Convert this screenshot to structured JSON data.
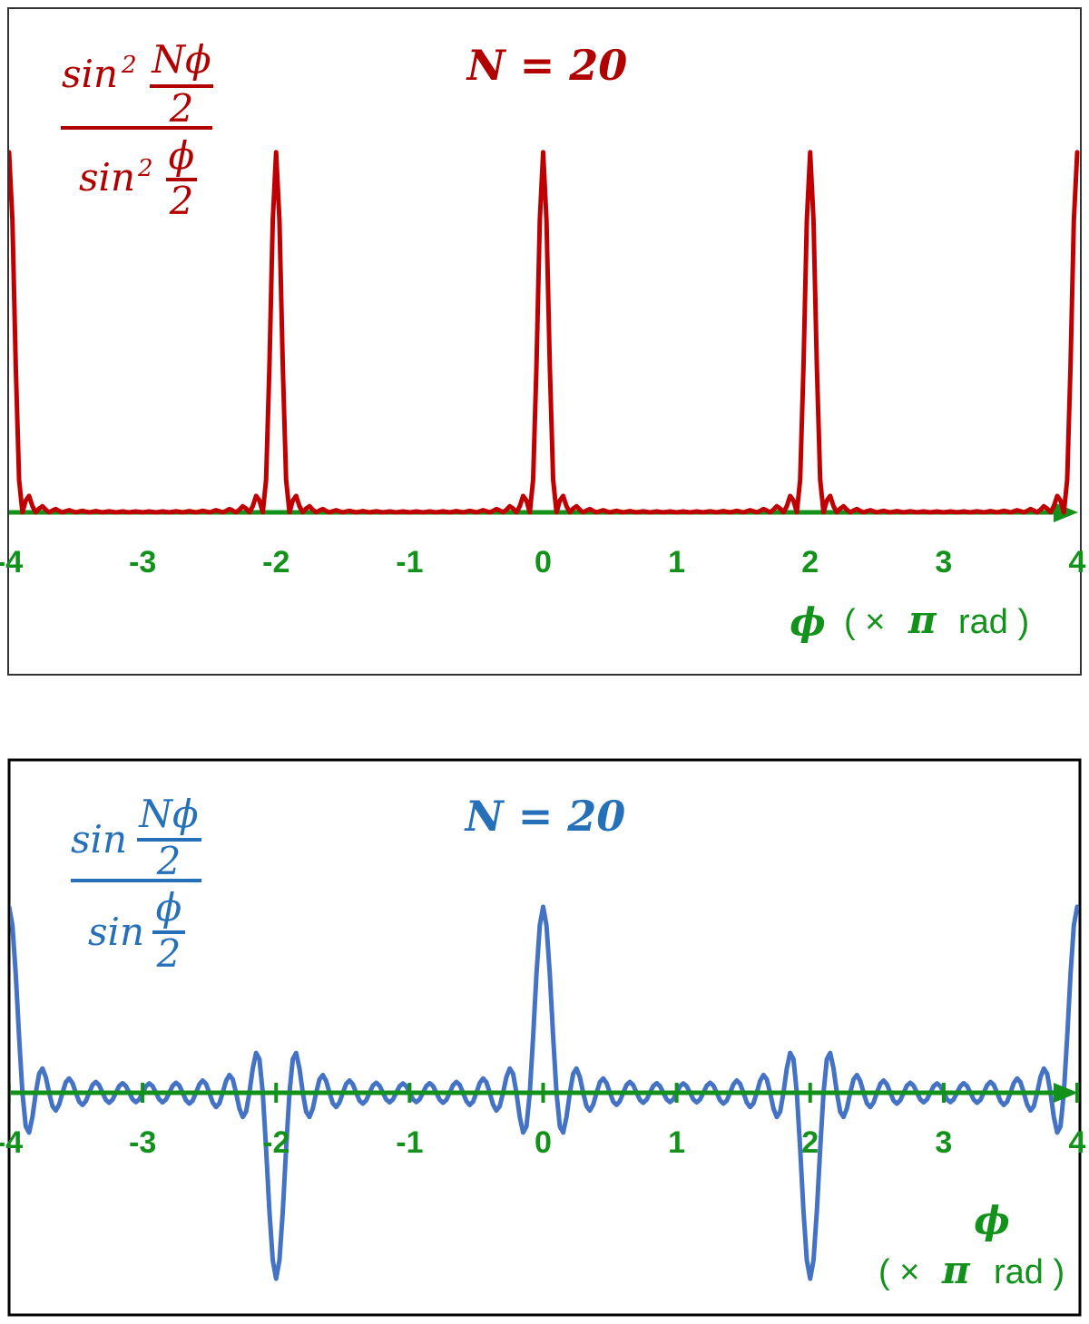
{
  "chart_data": [
    {
      "type": "line",
      "title": "N = 20",
      "formula": {
        "numerator": {
          "function": "sin",
          "power": "2",
          "frac_top": "Nϕ",
          "frac_bottom": "2"
        },
        "denominator": {
          "function": "sin",
          "power": "2",
          "frac_top": "ϕ",
          "frac_bottom": "2"
        }
      },
      "x_label": {
        "symbol": "ϕ",
        "open": "( ×",
        "pi": "π",
        "close": "rad )"
      },
      "color": "#c00000",
      "text_color": "#b00000",
      "axis_color": "#12921a",
      "tick_marks": false,
      "xlim": [
        -4,
        4
      ],
      "xticks": [
        -4,
        -3,
        -2,
        -1,
        0,
        1,
        2,
        3,
        4
      ],
      "ylim": [
        0,
        559
      ],
      "x": [
        -4,
        -3.975,
        -3.95,
        -3.925,
        -3.9,
        -3.875,
        -3.85,
        -3.825,
        -3.8,
        -3.775,
        -3.75,
        -3.725,
        -3.7,
        -3.675,
        -3.65,
        -3.625,
        -3.6,
        -3.575,
        -3.55,
        -3.525,
        -3.5,
        -3.475,
        -3.45,
        -3.425,
        -3.4,
        -3.375,
        -3.35,
        -3.325,
        -3.3,
        -3.275,
        -3.25,
        -3.225,
        -3.2,
        -3.175,
        -3.15,
        -3.125,
        -3.1,
        -3.075,
        -3.05,
        -3.025,
        -3,
        -2.975,
        -2.95,
        -2.925,
        -2.9,
        -2.875,
        -2.85,
        -2.825,
        -2.8,
        -2.775,
        -2.75,
        -2.725,
        -2.7,
        -2.675,
        -2.65,
        -2.625,
        -2.6,
        -2.575,
        -2.55,
        -2.525,
        -2.5,
        -2.475,
        -2.45,
        -2.425,
        -2.4,
        -2.375,
        -2.35,
        -2.325,
        -2.3,
        -2.275,
        -2.25,
        -2.225,
        -2.2,
        -2.175,
        -2.15,
        -2.125,
        -2.1,
        -2.075,
        -2.05,
        -2.025,
        -2,
        -1.975,
        -1.95,
        -1.925,
        -1.9,
        -1.875,
        -1.85,
        -1.825,
        -1.8,
        -1.775,
        -1.75,
        -1.725,
        -1.7,
        -1.675,
        -1.65,
        -1.625,
        -1.6,
        -1.575,
        -1.55,
        -1.525,
        -1.5,
        -1.475,
        -1.45,
        -1.425,
        -1.4,
        -1.375,
        -1.35,
        -1.325,
        -1.3,
        -1.275,
        -1.25,
        -1.225,
        -1.2,
        -1.175,
        -1.15,
        -1.125,
        -1.1,
        -1.075,
        -1.05,
        -1.025,
        -1,
        -0.975,
        -0.95,
        -0.925,
        -0.9,
        -0.875,
        -0.85,
        -0.825,
        -0.8,
        -0.775,
        -0.75,
        -0.725,
        -0.7,
        -0.675,
        -0.65,
        -0.625,
        -0.6,
        -0.575,
        -0.55,
        -0.525,
        -0.5,
        -0.475,
        -0.45,
        -0.425,
        -0.4,
        -0.375,
        -0.35,
        -0.325,
        -0.3,
        -0.275,
        -0.25,
        -0.225,
        -0.2,
        -0.175,
        -0.15,
        -0.125,
        -0.1,
        -0.075,
        -0.05,
        -0.025,
        0,
        0.025,
        0.05,
        0.075,
        0.1,
        0.125,
        0.15,
        0.175,
        0.2,
        0.225,
        0.25,
        0.275,
        0.3,
        0.325,
        0.35,
        0.375,
        0.4,
        0.425,
        0.45,
        0.475,
        0.5,
        0.525,
        0.55,
        0.575,
        0.6,
        0.625,
        0.65,
        0.675,
        0.7,
        0.725,
        0.75,
        0.775,
        0.8,
        0.825,
        0.85,
        0.875,
        0.9,
        0.925,
        0.95,
        0.975,
        1,
        1.025,
        1.05,
        1.075,
        1.1,
        1.125,
        1.15,
        1.175,
        1.2,
        1.225,
        1.25,
        1.275,
        1.3,
        1.325,
        1.35,
        1.375,
        1.4,
        1.425,
        1.45,
        1.475,
        1.5,
        1.525,
        1.55,
        1.575,
        1.6,
        1.625,
        1.65,
        1.675,
        1.7,
        1.725,
        1.75,
        1.775,
        1.8,
        1.825,
        1.85,
        1.875,
        1.9,
        1.925,
        1.95,
        1.975,
        2,
        2.025,
        2.05,
        2.075,
        2.1,
        2.125,
        2.15,
        2.175,
        2.2,
        2.225,
        2.25,
        2.275,
        2.3,
        2.325,
        2.35,
        2.375,
        2.4,
        2.425,
        2.45,
        2.475,
        2.5,
        2.525,
        2.55,
        2.575,
        2.6,
        2.625,
        2.65,
        2.675,
        2.7,
        2.725,
        2.75,
        2.775,
        2.8,
        2.825,
        2.85,
        2.875,
        2.9,
        2.925,
        2.95,
        2.975,
        3,
        3.025,
        3.05,
        3.075,
        3.1,
        3.125,
        3.15,
        3.175,
        3.2,
        3.225,
        3.25,
        3.275,
        3.3,
        3.325,
        3.35,
        3.375,
        3.4,
        3.425,
        3.45,
        3.475,
        3.5,
        3.525,
        3.55,
        3.575,
        3.6,
        3.625,
        3.65,
        3.675,
        3.7,
        3.725,
        3.75,
        3.775,
        3.8,
        3.825,
        3.85,
        3.875,
        3.9,
        3.925,
        3.95,
        3.975,
        4
      ],
      "values": [
        400,
        324.5,
        162.4,
        36.2,
        0,
        13.1,
        18.3,
        6.8,
        0,
        4.2,
        6.8,
        2.9,
        0,
        2.1,
        3.7,
        1.6,
        0,
        1.3,
        2.4,
        1.1,
        0,
        0.9,
        1.7,
        0.8,
        0,
        0.7,
        1.4,
        0.7,
        0,
        0.6,
        1.2,
        0.6,
        0,
        0.5,
        1.1,
        0.5,
        0,
        0.5,
        1,
        0.5,
        0,
        0.5,
        1,
        0.5,
        0,
        0.5,
        1.1,
        0.5,
        0,
        0.6,
        1.2,
        0.6,
        0,
        0.7,
        1.4,
        0.7,
        0,
        0.8,
        1.7,
        0.9,
        0,
        1.1,
        2.4,
        1.3,
        0,
        1.6,
        3.7,
        2.1,
        0,
        2.9,
        6.8,
        4.2,
        0,
        6.8,
        18.3,
        13.1,
        0,
        36.2,
        162.4,
        324.5,
        400,
        324.5,
        162.4,
        36.2,
        0,
        13.1,
        18.3,
        6.8,
        0,
        4.2,
        6.8,
        2.9,
        0,
        2.1,
        3.7,
        1.6,
        0,
        1.3,
        2.4,
        1.1,
        0,
        0.9,
        1.7,
        0.8,
        0,
        0.7,
        1.4,
        0.7,
        0,
        0.6,
        1.2,
        0.6,
        0,
        0.5,
        1.1,
        0.5,
        0,
        0.5,
        1,
        0.5,
        0,
        0.5,
        1,
        0.5,
        0,
        0.5,
        1.1,
        0.5,
        0,
        0.6,
        1.2,
        0.6,
        0,
        0.7,
        1.4,
        0.7,
        0,
        0.8,
        1.7,
        0.9,
        0,
        1.1,
        2.4,
        1.3,
        0,
        1.6,
        3.7,
        2.1,
        0,
        2.9,
        6.8,
        4.2,
        0,
        6.8,
        18.3,
        13.1,
        0,
        36.2,
        162.4,
        324.5,
        400,
        324.5,
        162.4,
        36.2,
        0,
        13.1,
        18.3,
        6.8,
        0,
        4.2,
        6.8,
        2.9,
        0,
        2.1,
        3.7,
        1.6,
        0,
        1.3,
        2.4,
        1.1,
        0,
        0.9,
        1.7,
        0.8,
        0,
        0.7,
        1.4,
        0.7,
        0,
        0.6,
        1.2,
        0.6,
        0,
        0.5,
        1.1,
        0.5,
        0,
        0.5,
        1,
        0.5,
        0,
        0.5,
        1,
        0.5,
        0,
        0.5,
        1.1,
        0.5,
        0,
        0.6,
        1.2,
        0.6,
        0,
        0.7,
        1.4,
        0.7,
        0,
        0.8,
        1.7,
        0.9,
        0,
        1.1,
        2.4,
        1.3,
        0,
        1.6,
        3.7,
        2.1,
        0,
        2.9,
        6.8,
        4.2,
        0,
        6.8,
        18.3,
        13.1,
        0,
        36.2,
        162.4,
        324.5,
        400,
        324.5,
        162.4,
        36.2,
        0,
        13.1,
        18.3,
        6.8,
        0,
        4.2,
        6.8,
        2.9,
        0,
        2.1,
        3.7,
        1.6,
        0,
        1.3,
        2.4,
        1.1,
        0,
        0.9,
        1.7,
        0.8,
        0,
        0.7,
        1.4,
        0.7,
        0,
        0.6,
        1.2,
        0.6,
        0,
        0.5,
        1.1,
        0.5,
        0,
        0.5,
        1,
        0.5,
        0,
        0.5,
        1,
        0.5,
        0,
        0.5,
        1.1,
        0.5,
        0,
        0.6,
        1.2,
        0.6,
        0,
        0.7,
        1.4,
        0.7,
        0,
        0.8,
        1.7,
        0.9,
        0,
        1.1,
        2.4,
        1.3,
        0,
        1.6,
        3.7,
        2.1,
        0,
        2.9,
        6.8,
        4.2,
        0,
        6.8,
        18.3,
        13.1,
        0,
        36.2,
        162.4,
        324.5,
        400
      ]
    },
    {
      "type": "line",
      "title": "N = 20",
      "formula": {
        "numerator": {
          "function": "sin",
          "frac_top": "Nϕ",
          "frac_bottom": "2"
        },
        "denominator": {
          "function": "sin",
          "frac_top": "ϕ",
          "frac_bottom": "2"
        }
      },
      "x_label": {
        "symbol": "ϕ",
        "open": "( ×",
        "pi": "π",
        "close": "rad )"
      },
      "color": "#4472c4",
      "text_color": "#2570b8",
      "axis_color": "#12921a",
      "tick_marks": true,
      "xlim": [
        -4,
        4
      ],
      "xticks": [
        -4,
        -3,
        -2,
        -1,
        0,
        1,
        2,
        3,
        4
      ],
      "ylim": [
        -23.7,
        35.6
      ],
      "x": [
        -4,
        -3.975,
        -3.95,
        -3.925,
        -3.9,
        -3.875,
        -3.85,
        -3.825,
        -3.8,
        -3.775,
        -3.75,
        -3.725,
        -3.7,
        -3.675,
        -3.65,
        -3.625,
        -3.6,
        -3.575,
        -3.55,
        -3.525,
        -3.5,
        -3.475,
        -3.45,
        -3.425,
        -3.4,
        -3.375,
        -3.35,
        -3.325,
        -3.3,
        -3.275,
        -3.25,
        -3.225,
        -3.2,
        -3.175,
        -3.15,
        -3.125,
        -3.1,
        -3.075,
        -3.05,
        -3.025,
        -3,
        -2.975,
        -2.95,
        -2.925,
        -2.9,
        -2.875,
        -2.85,
        -2.825,
        -2.8,
        -2.775,
        -2.75,
        -2.725,
        -2.7,
        -2.675,
        -2.65,
        -2.625,
        -2.6,
        -2.575,
        -2.55,
        -2.525,
        -2.5,
        -2.475,
        -2.45,
        -2.425,
        -2.4,
        -2.375,
        -2.35,
        -2.325,
        -2.3,
        -2.275,
        -2.25,
        -2.225,
        -2.2,
        -2.175,
        -2.15,
        -2.125,
        -2.1,
        -2.075,
        -2.05,
        -2.025,
        -2,
        -1.975,
        -1.95,
        -1.925,
        -1.9,
        -1.875,
        -1.85,
        -1.825,
        -1.8,
        -1.775,
        -1.75,
        -1.725,
        -1.7,
        -1.675,
        -1.65,
        -1.625,
        -1.6,
        -1.575,
        -1.55,
        -1.525,
        -1.5,
        -1.475,
        -1.45,
        -1.425,
        -1.4,
        -1.375,
        -1.35,
        -1.325,
        -1.3,
        -1.275,
        -1.25,
        -1.225,
        -1.2,
        -1.175,
        -1.15,
        -1.125,
        -1.1,
        -1.075,
        -1.05,
        -1.025,
        -1,
        -0.975,
        -0.95,
        -0.925,
        -0.9,
        -0.875,
        -0.85,
        -0.825,
        -0.8,
        -0.775,
        -0.75,
        -0.725,
        -0.7,
        -0.675,
        -0.65,
        -0.625,
        -0.6,
        -0.575,
        -0.55,
        -0.525,
        -0.5,
        -0.475,
        -0.45,
        -0.425,
        -0.4,
        -0.375,
        -0.35,
        -0.325,
        -0.3,
        -0.275,
        -0.25,
        -0.225,
        -0.2,
        -0.175,
        -0.15,
        -0.125,
        -0.1,
        -0.075,
        -0.05,
        -0.025,
        0,
        0.025,
        0.05,
        0.075,
        0.1,
        0.125,
        0.15,
        0.175,
        0.2,
        0.225,
        0.25,
        0.275,
        0.3,
        0.325,
        0.35,
        0.375,
        0.4,
        0.425,
        0.45,
        0.475,
        0.5,
        0.525,
        0.55,
        0.575,
        0.6,
        0.625,
        0.65,
        0.675,
        0.7,
        0.725,
        0.75,
        0.775,
        0.8,
        0.825,
        0.85,
        0.875,
        0.9,
        0.925,
        0.95,
        0.975,
        1,
        1.025,
        1.05,
        1.075,
        1.1,
        1.125,
        1.15,
        1.175,
        1.2,
        1.225,
        1.25,
        1.275,
        1.3,
        1.325,
        1.35,
        1.375,
        1.4,
        1.425,
        1.45,
        1.475,
        1.5,
        1.525,
        1.55,
        1.575,
        1.6,
        1.625,
        1.65,
        1.675,
        1.7,
        1.725,
        1.75,
        1.775,
        1.8,
        1.825,
        1.85,
        1.875,
        1.9,
        1.925,
        1.95,
        1.975,
        2,
        2.025,
        2.05,
        2.075,
        2.1,
        2.125,
        2.15,
        2.175,
        2.2,
        2.225,
        2.25,
        2.275,
        2.3,
        2.325,
        2.35,
        2.375,
        2.4,
        2.425,
        2.45,
        2.475,
        2.5,
        2.525,
        2.55,
        2.575,
        2.6,
        2.625,
        2.65,
        2.675,
        2.7,
        2.725,
        2.75,
        2.775,
        2.8,
        2.825,
        2.85,
        2.875,
        2.9,
        2.925,
        2.95,
        2.975,
        3,
        3.025,
        3.05,
        3.075,
        3.1,
        3.125,
        3.15,
        3.175,
        3.2,
        3.225,
        3.25,
        3.275,
        3.3,
        3.325,
        3.35,
        3.375,
        3.4,
        3.425,
        3.45,
        3.475,
        3.5,
        3.525,
        3.55,
        3.575,
        3.6,
        3.625,
        3.65,
        3.675,
        3.7,
        3.725,
        3.75,
        3.775,
        3.8,
        3.825,
        3.85,
        3.875,
        3.9,
        3.925,
        3.95,
        3.975,
        4
      ],
      "values": [
        20,
        18.01,
        12.75,
        6.02,
        0,
        -3.62,
        -4.28,
        -2.61,
        0,
        2.04,
        2.61,
        1.69,
        0,
        -1.45,
        -1.91,
        -1.27,
        0,
        1.14,
        1.54,
        1.04,
        0,
        -0.96,
        -1.32,
        -0.9,
        0,
        0.85,
        1.17,
        0.81,
        0,
        -0.78,
        -1.08,
        -0.75,
        0,
        0.73,
        1.03,
        0.72,
        0,
        -0.71,
        -1,
        -0.71,
        0,
        0.71,
        1,
        0.71,
        0,
        -0.72,
        -1.03,
        -0.73,
        0,
        0.75,
        1.08,
        0.78,
        0,
        -0.81,
        -1.17,
        -0.85,
        0,
        0.9,
        1.32,
        0.96,
        0,
        -1.04,
        -1.54,
        -1.14,
        0,
        1.27,
        1.91,
        1.45,
        0,
        -1.69,
        -2.61,
        -2.04,
        0,
        2.61,
        4.28,
        3.62,
        0,
        -6.02,
        -12.75,
        -18.01,
        -20,
        -18.01,
        -12.75,
        -6.02,
        0,
        3.62,
        4.28,
        2.61,
        0,
        -2.04,
        -2.61,
        -1.69,
        0,
        1.45,
        1.91,
        1.27,
        0,
        -1.14,
        -1.54,
        -1.04,
        0,
        0.96,
        1.32,
        0.9,
        0,
        -0.85,
        -1.17,
        -0.81,
        0,
        0.78,
        1.08,
        0.75,
        0,
        -0.73,
        -1.03,
        -0.72,
        0,
        0.71,
        1,
        0.71,
        0,
        -0.71,
        -1,
        -0.71,
        0,
        0.72,
        1.03,
        0.73,
        0,
        -0.75,
        -1.08,
        -0.78,
        0,
        0.81,
        1.17,
        0.85,
        0,
        -0.9,
        -1.32,
        -0.96,
        0,
        1.04,
        1.54,
        1.14,
        0,
        -1.27,
        -1.91,
        -1.45,
        0,
        1.69,
        2.61,
        2.04,
        0,
        -2.61,
        -4.28,
        -3.62,
        0,
        6.02,
        12.75,
        18.01,
        20,
        18.01,
        12.75,
        6.02,
        0,
        -3.62,
        -4.28,
        -2.61,
        0,
        2.04,
        2.61,
        1.69,
        0,
        -1.45,
        -1.91,
        -1.27,
        0,
        1.14,
        1.54,
        1.04,
        0,
        -0.96,
        -1.32,
        -0.9,
        0,
        0.85,
        1.17,
        0.81,
        0,
        -0.78,
        -1.08,
        -0.75,
        0,
        0.73,
        1.03,
        0.72,
        0,
        -0.71,
        -1,
        -0.71,
        0,
        0.71,
        1,
        0.71,
        0,
        -0.72,
        -1.03,
        -0.73,
        0,
        0.75,
        1.08,
        0.78,
        0,
        -0.81,
        -1.17,
        -0.85,
        0,
        0.9,
        1.32,
        0.96,
        0,
        -1.04,
        -1.54,
        -1.14,
        0,
        1.27,
        1.91,
        1.45,
        0,
        -1.69,
        -2.61,
        -2.04,
        0,
        2.61,
        4.28,
        3.62,
        0,
        -6.02,
        -12.75,
        -18.01,
        -20,
        -18.01,
        -12.75,
        -6.02,
        0,
        3.62,
        4.28,
        2.61,
        0,
        -2.04,
        -2.61,
        -1.69,
        0,
        1.45,
        1.91,
        1.27,
        0,
        -1.14,
        -1.54,
        -1.04,
        0,
        0.96,
        1.32,
        0.9,
        0,
        -0.85,
        -1.17,
        -0.81,
        0,
        0.78,
        1.08,
        0.75,
        0,
        -0.73,
        -1.03,
        -0.72,
        0,
        0.71,
        1,
        0.71,
        0,
        -0.71,
        -1,
        -0.71,
        0,
        0.72,
        1.03,
        0.73,
        0,
        -0.75,
        -1.08,
        -0.78,
        0,
        0.81,
        1.17,
        0.85,
        0,
        -0.9,
        -1.32,
        -0.96,
        0,
        1.04,
        1.54,
        1.14,
        0,
        -1.27,
        -1.91,
        -1.45,
        0,
        1.69,
        2.61,
        2.04,
        0,
        -2.61,
        -4.28,
        -3.62,
        0,
        6.02,
        12.75,
        18.01,
        20
      ]
    }
  ]
}
